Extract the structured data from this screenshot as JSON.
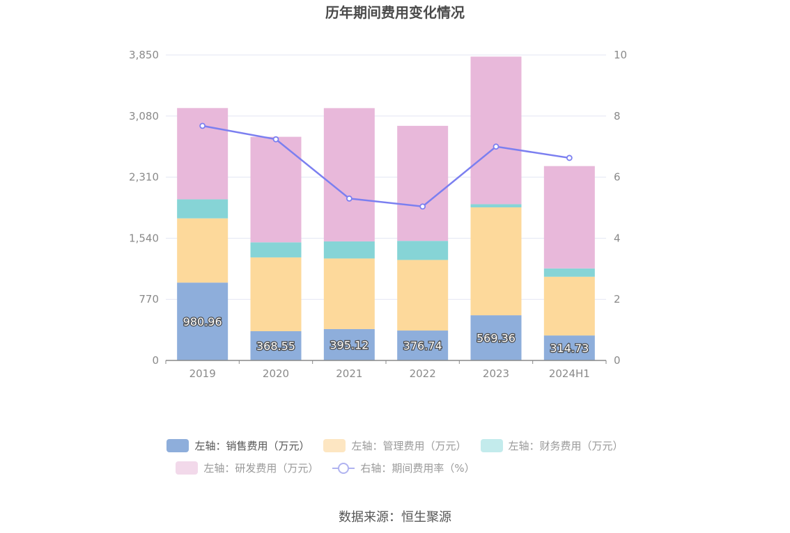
{
  "chart_data": {
    "type": "bar",
    "title": "历年期间费用变化情况",
    "categories": [
      "2019",
      "2020",
      "2021",
      "2022",
      "2023",
      "2024H1"
    ],
    "left_axis": {
      "ticks": [
        "0",
        "770",
        "1,540",
        "2,310",
        "3,080",
        "3,850"
      ],
      "ylim": [
        0,
        3850
      ]
    },
    "right_axis": {
      "ticks": [
        "0",
        "2",
        "4",
        "6",
        "8",
        "10"
      ],
      "ylim": [
        0,
        10
      ]
    },
    "stacked": true,
    "series": [
      {
        "name": "左轴：销售费用（万元）",
        "type": "bar",
        "axis": "left",
        "color": "#8eaedb",
        "values": [
          980.96,
          368.55,
          395.12,
          376.74,
          569.36,
          314.73
        ],
        "labels": [
          "980.96",
          "368.55",
          "395.12",
          "376.74",
          "569.36",
          "314.73"
        ]
      },
      {
        "name": "左轴：管理费用（万元）",
        "type": "bar",
        "axis": "left",
        "color": "#fdd99b",
        "values": [
          810,
          930,
          890,
          890,
          1360,
          740
        ]
      },
      {
        "name": "左轴：财务费用（万元）",
        "type": "bar",
        "axis": "left",
        "color": "#86d4d6",
        "values": [
          240,
          190,
          215,
          240,
          40,
          105
        ]
      },
      {
        "name": "左轴：研发费用（万元）",
        "type": "bar",
        "axis": "left",
        "color": "#e8b8da",
        "values": [
          1150,
          1330,
          1680,
          1450,
          1860,
          1290
        ]
      },
      {
        "name": "右轴：期间费用率（%）",
        "type": "line",
        "axis": "right",
        "color": "#7b7ff0",
        "values": [
          7.68,
          7.24,
          5.3,
          5.04,
          7.0,
          6.63
        ]
      }
    ],
    "legend_position": "bottom",
    "grid": true
  },
  "legend_colors": {
    "sales": "#8eaedb",
    "admin": "#fde6c2",
    "finance": "#c3ebec",
    "rnd": "#f2d9ea"
  },
  "source": "数据来源：恒生聚源"
}
